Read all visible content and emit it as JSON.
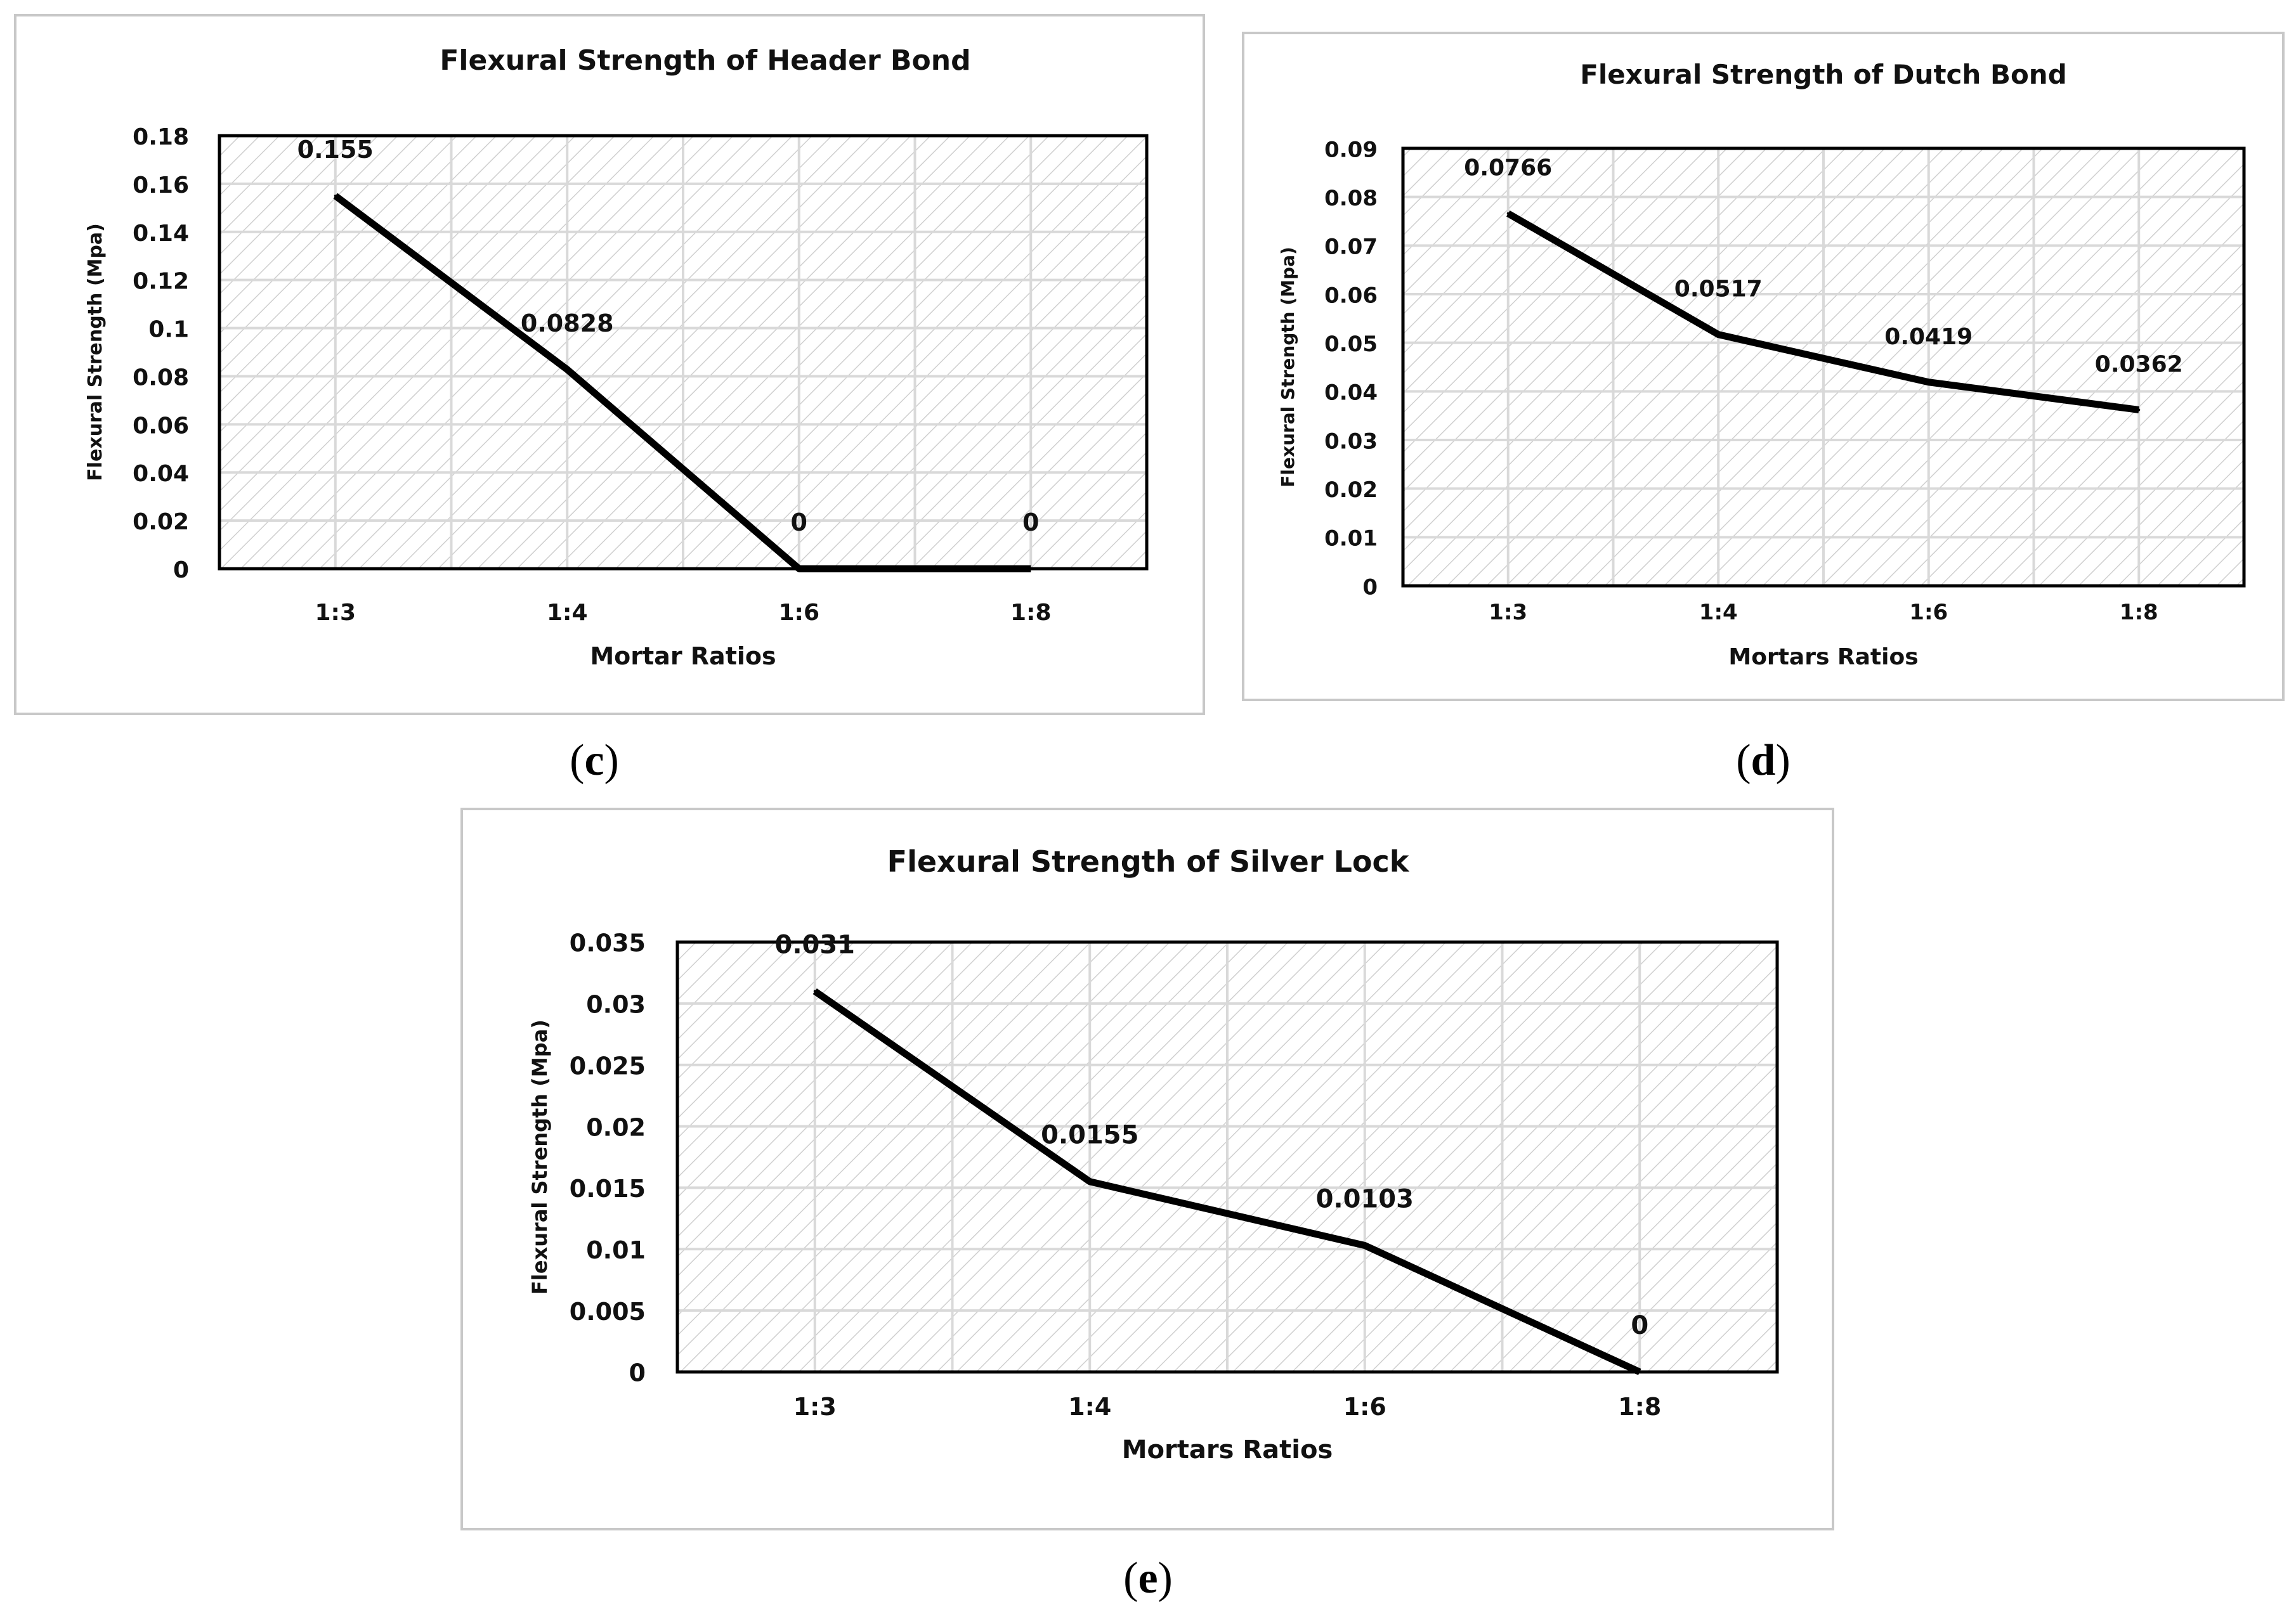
{
  "chart_data": [
    {
      "type": "line",
      "panel": "c",
      "title": "Flexural Strength of Header Bond",
      "xlabel": "Mortar Ratios",
      "ylabel": "Flexural Strength (Mpa)",
      "categories": [
        "1:3",
        "1:4",
        "1:6",
        "1:8"
      ],
      "values": [
        0.155,
        0.0828,
        0,
        0
      ],
      "data_labels": [
        "0.155",
        "0.0828",
        "0",
        "0"
      ],
      "yticks": [
        "0",
        "0.02",
        "0.04",
        "0.06",
        "0.08",
        "0.1",
        "0.12",
        "0.14",
        "0.16",
        "0.18"
      ],
      "ylim": [
        0,
        0.18
      ],
      "grid": true
    },
    {
      "type": "line",
      "panel": "d",
      "title": "Flexural Strength of Dutch Bond",
      "xlabel": "Mortars Ratios",
      "ylabel": "Flexural Strength (Mpa)",
      "categories": [
        "1:3",
        "1:4",
        "1:6",
        "1:8"
      ],
      "values": [
        0.0766,
        0.0517,
        0.0419,
        0.0362
      ],
      "data_labels": [
        "0.0766",
        "0.0517",
        "0.0419",
        "0.0362"
      ],
      "yticks": [
        "0",
        "0.01",
        "0.02",
        "0.03",
        "0.04",
        "0.05",
        "0.06",
        "0.07",
        "0.08",
        "0.09"
      ],
      "ylim": [
        0,
        0.09
      ],
      "grid": true
    },
    {
      "type": "line",
      "panel": "e",
      "title": "Flexural Strength of Silver Lock",
      "xlabel": "Mortars Ratios",
      "ylabel": "Flexural Strength (Mpa)",
      "categories": [
        "1:3",
        "1:4",
        "1:6",
        "1:8"
      ],
      "values": [
        0.031,
        0.0155,
        0.0103,
        0
      ],
      "data_labels": [
        "0.031",
        "0.0155",
        "0.0103",
        "0"
      ],
      "yticks": [
        "0",
        "0.005",
        "0.01",
        "0.015",
        "0.02",
        "0.025",
        "0.03",
        "0.035"
      ],
      "ylim": [
        0,
        0.035
      ],
      "grid": true
    }
  ],
  "captions": {
    "c": "c",
    "d": "d",
    "e": "e"
  },
  "colors": {
    "line": "#000000",
    "grid": "#d9d9d9",
    "hatch": "#cfcfcf",
    "frame": "#000000"
  }
}
